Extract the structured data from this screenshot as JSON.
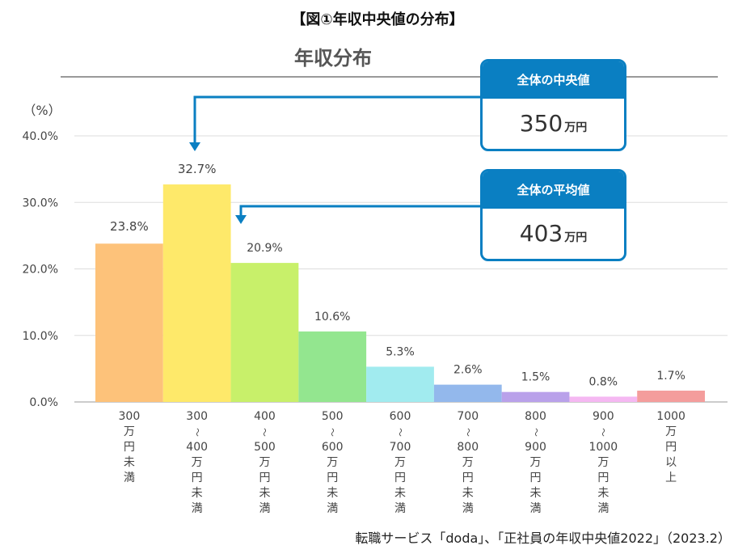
{
  "figure_title": "【図①年収中央値の分布】",
  "source": "転職サービス「doda」、「正社員の年収中央値2022」（2023.2）",
  "callouts": {
    "median": {
      "label": "全体の中央値",
      "value": "350",
      "unit": "万円"
    },
    "mean": {
      "label": "全体の平均値",
      "value": "403",
      "unit": "万円"
    }
  },
  "colors": {
    "accent": "#0a7fc2"
  },
  "chart_data": {
    "type": "bar",
    "title": "年収分布",
    "ylabel": "（%）",
    "ylim": [
      0,
      40
    ],
    "yticks": [
      "0.0%",
      "10.0%",
      "20.0%",
      "30.0%",
      "40.0%"
    ],
    "grid": true,
    "categories": [
      [
        "300",
        "万",
        "円",
        "未",
        "満"
      ],
      [
        "300",
        "〜",
        "400",
        "万",
        "円",
        "未",
        "満"
      ],
      [
        "400",
        "〜",
        "500",
        "万",
        "円",
        "未",
        "満"
      ],
      [
        "500",
        "〜",
        "600",
        "万",
        "円",
        "未",
        "満"
      ],
      [
        "600",
        "〜",
        "700",
        "万",
        "円",
        "未",
        "満"
      ],
      [
        "700",
        "〜",
        "800",
        "万",
        "円",
        "未",
        "満"
      ],
      [
        "800",
        "〜",
        "900",
        "万",
        "円",
        "未",
        "満"
      ],
      [
        "900",
        "〜",
        "1000",
        "万",
        "円",
        "未",
        "満"
      ],
      [
        "1000",
        "万",
        "円",
        "以",
        "上"
      ]
    ],
    "values": [
      23.8,
      32.7,
      20.9,
      10.6,
      5.3,
      2.6,
      1.5,
      0.8,
      1.7
    ],
    "data_labels": [
      "23.8%",
      "32.7%",
      "20.9%",
      "10.6%",
      "5.3%",
      "2.6%",
      "1.5%",
      "0.8%",
      "1.7%"
    ],
    "bar_colors": [
      "#fdc27a",
      "#fee96a",
      "#c8f06a",
      "#93e68f",
      "#a1ebef",
      "#93b8ec",
      "#b9a1ea",
      "#f5b8f2",
      "#f49d9c"
    ]
  }
}
